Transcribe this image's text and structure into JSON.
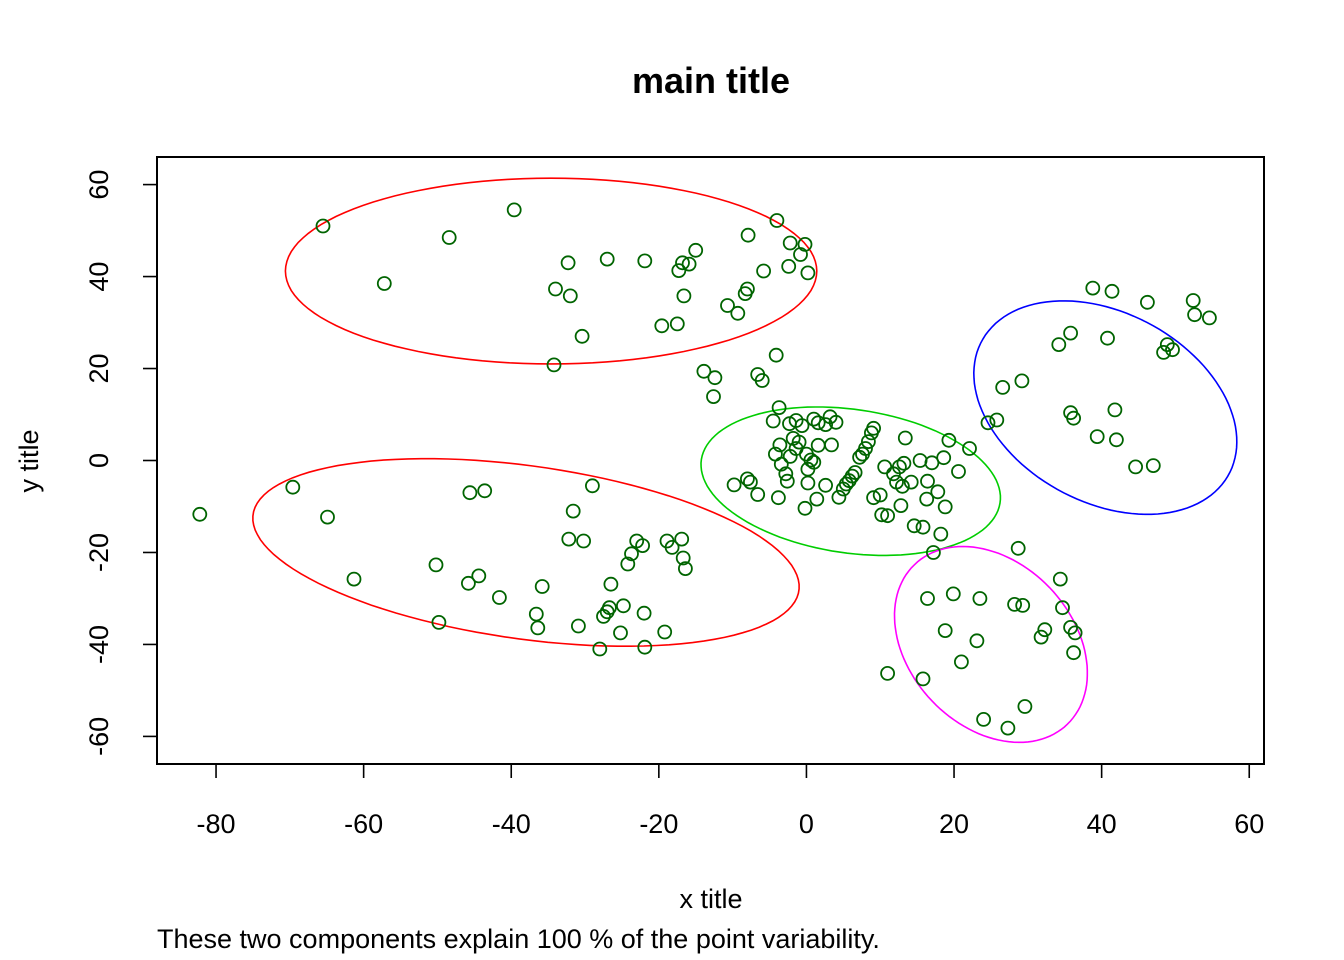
{
  "chart_data": {
    "type": "scatter",
    "title": "main title",
    "xlabel": "x title",
    "ylabel": "y title",
    "subtitle": "These two components explain 100 % of the point variability.",
    "xlim": [
      -88,
      62
    ],
    "ylim": [
      -66,
      66
    ],
    "xticks": [
      -80,
      -60,
      -40,
      -20,
      0,
      20,
      40,
      60
    ],
    "yticks": [
      -60,
      -40,
      -20,
      0,
      20,
      40,
      60
    ],
    "grid": false,
    "legend": "none",
    "point_color": "#006400",
    "point_shape": "open-circle",
    "points": [
      [
        -65.5,
        51
      ],
      [
        -57.2,
        38.5
      ],
      [
        -48.4,
        48.5
      ],
      [
        -39.6,
        54.5
      ],
      [
        -34,
        37.3
      ],
      [
        -32.3,
        43
      ],
      [
        -32,
        35.8
      ],
      [
        -34.2,
        20.8
      ],
      [
        -30.4,
        27
      ],
      [
        -27,
        43.8
      ],
      [
        -21.9,
        43.4
      ],
      [
        -19.6,
        29.3
      ],
      [
        -17.5,
        29.7
      ],
      [
        -17.3,
        41.3
      ],
      [
        -16.8,
        43
      ],
      [
        -16.6,
        35.8
      ],
      [
        -15.9,
        42.7
      ],
      [
        -15,
        45.7
      ],
      [
        -10.7,
        33.7
      ],
      [
        -8.3,
        36.3
      ],
      [
        -8,
        37.3
      ],
      [
        -7.9,
        49
      ],
      [
        -5.8,
        41.2
      ],
      [
        -4,
        52.2
      ],
      [
        -2.2,
        47.3
      ],
      [
        -2.4,
        42.2
      ],
      [
        -0.8,
        44.8
      ],
      [
        -0.2,
        47
      ],
      [
        0.2,
        40.8
      ],
      [
        -9.3,
        32
      ],
      [
        -4.1,
        22.9
      ],
      [
        -13.9,
        19.4
      ],
      [
        -12.4,
        18
      ],
      [
        -12.6,
        13.9
      ],
      [
        -6.6,
        18.7
      ],
      [
        -6,
        17.4
      ],
      [
        -3.7,
        11.5
      ],
      [
        -4.5,
        8.6
      ],
      [
        -2.3,
        8
      ],
      [
        -1.4,
        8.7
      ],
      [
        -0.6,
        7.6
      ],
      [
        1,
        9
      ],
      [
        1.6,
        8.2
      ],
      [
        2.6,
        7.8
      ],
      [
        3.2,
        9.5
      ],
      [
        4,
        8.3
      ],
      [
        -4.2,
        1.4
      ],
      [
        -3.6,
        3.4
      ],
      [
        -3.4,
        -0.8
      ],
      [
        -2.8,
        -2.9
      ],
      [
        -2.6,
        -4.5
      ],
      [
        -2.2,
        0.9
      ],
      [
        -1.8,
        4.8
      ],
      [
        -1.4,
        2.6
      ],
      [
        -1,
        4
      ],
      [
        0,
        1.4
      ],
      [
        0.2,
        -1.9
      ],
      [
        0.6,
        0.1
      ],
      [
        1,
        -0.4
      ],
      [
        1.6,
        3.3
      ],
      [
        -9.8,
        -5.3
      ],
      [
        -8,
        -4
      ],
      [
        -7.6,
        -4.7
      ],
      [
        -6.6,
        -7.4
      ],
      [
        -3.8,
        -8.1
      ],
      [
        0.2,
        -4.9
      ],
      [
        -0.2,
        -10.4
      ],
      [
        1.4,
        -8.4
      ],
      [
        2.6,
        -5.4
      ],
      [
        3.4,
        3.4
      ],
      [
        4.4,
        -8
      ],
      [
        5,
        -6.2
      ],
      [
        5.4,
        -5.1
      ],
      [
        5.8,
        -4.4
      ],
      [
        6.2,
        -3.4
      ],
      [
        6.6,
        -2.6
      ],
      [
        7.2,
        0.7
      ],
      [
        7.6,
        1.4
      ],
      [
        8,
        2.6
      ],
      [
        8.4,
        4.1
      ],
      [
        8.8,
        6
      ],
      [
        9.1,
        7
      ],
      [
        9.1,
        -8.1
      ],
      [
        10,
        -7.5
      ],
      [
        10.2,
        -11.8
      ],
      [
        10.6,
        -1.4
      ],
      [
        11,
        -12
      ],
      [
        11.8,
        -2.9
      ],
      [
        12.2,
        -4.7
      ],
      [
        12.6,
        -1.4
      ],
      [
        12.8,
        -9.8
      ],
      [
        13,
        -5.6
      ],
      [
        13.2,
        -0.6
      ],
      [
        13.4,
        4.9
      ],
      [
        14.2,
        -4.7
      ],
      [
        14.6,
        -14.2
      ],
      [
        15.4,
        0
      ],
      [
        15.8,
        -14.5
      ],
      [
        16.3,
        -8.4
      ],
      [
        16.4,
        -4.5
      ],
      [
        17,
        -0.5
      ],
      [
        17.2,
        -20
      ],
      [
        17.8,
        -6.8
      ],
      [
        18.2,
        -16
      ],
      [
        18.6,
        0.6
      ],
      [
        18.8,
        -10.1
      ],
      [
        19.3,
        4.4
      ],
      [
        20.6,
        -2.4
      ],
      [
        22.1,
        2.6
      ],
      [
        24.6,
        8.2
      ],
      [
        25.8,
        8.8
      ],
      [
        26.6,
        15.9
      ],
      [
        29.2,
        17.3
      ],
      [
        34.2,
        25.2
      ],
      [
        35.8,
        27.7
      ],
      [
        35.8,
        10.4
      ],
      [
        36.2,
        9.2
      ],
      [
        38.8,
        37.5
      ],
      [
        39.4,
        5.2
      ],
      [
        40.8,
        26.6
      ],
      [
        41.4,
        36.8
      ],
      [
        41.8,
        11
      ],
      [
        42,
        4.5
      ],
      [
        44.6,
        -1.4
      ],
      [
        46.2,
        34.4
      ],
      [
        47,
        -1.1
      ],
      [
        48.4,
        23.5
      ],
      [
        48.9,
        25.2
      ],
      [
        49.6,
        24.1
      ],
      [
        52.4,
        34.8
      ],
      [
        52.6,
        31.7
      ],
      [
        54.6,
        31
      ],
      [
        11,
        -46.3
      ],
      [
        15.8,
        -47.5
      ],
      [
        16.4,
        -30
      ],
      [
        18.8,
        -37
      ],
      [
        19.9,
        -29
      ],
      [
        21,
        -43.8
      ],
      [
        23.1,
        -39.2
      ],
      [
        23.5,
        -30
      ],
      [
        24,
        -56.3
      ],
      [
        27.3,
        -58.2
      ],
      [
        28.2,
        -31.3
      ],
      [
        28.7,
        -19.1
      ],
      [
        29.3,
        -31.5
      ],
      [
        29.6,
        -53.5
      ],
      [
        31.8,
        -38.4
      ],
      [
        32.3,
        -36.8
      ],
      [
        34.4,
        -25.8
      ],
      [
        34.7,
        -32
      ],
      [
        35.8,
        -36.3
      ],
      [
        36.2,
        -41.8
      ],
      [
        36.4,
        -37.5
      ],
      [
        -82.2,
        -11.7
      ],
      [
        -69.6,
        -5.8
      ],
      [
        -64.9,
        -12.3
      ],
      [
        -61.3,
        -25.8
      ],
      [
        -50.2,
        -22.7
      ],
      [
        -49.8,
        -35.2
      ],
      [
        -45.8,
        -26.7
      ],
      [
        -45.6,
        -7
      ],
      [
        -44.4,
        -25.1
      ],
      [
        -43.6,
        -6.6
      ],
      [
        -41.6,
        -29.8
      ],
      [
        -36.6,
        -33.4
      ],
      [
        -36.4,
        -36.4
      ],
      [
        -35.8,
        -27.4
      ],
      [
        -32.2,
        -17.1
      ],
      [
        -31.6,
        -11
      ],
      [
        -30.9,
        -36
      ],
      [
        -30.2,
        -17.5
      ],
      [
        -29,
        -5.5
      ],
      [
        -28,
        -41
      ],
      [
        -27.5,
        -33.9
      ],
      [
        -27,
        -32.9
      ],
      [
        -26.7,
        -32
      ],
      [
        -26.5,
        -26.9
      ],
      [
        -25.2,
        -37.5
      ],
      [
        -24.8,
        -31.6
      ],
      [
        -24.2,
        -22.5
      ],
      [
        -23.7,
        -20.3
      ],
      [
        -23,
        -17.5
      ],
      [
        -22.2,
        -18.5
      ],
      [
        -22,
        -33.2
      ],
      [
        -21.9,
        -40.6
      ],
      [
        -19.2,
        -37.3
      ],
      [
        -18.9,
        -17.5
      ],
      [
        -18.2,
        -18.9
      ],
      [
        -16.9,
        -17.1
      ],
      [
        -16.7,
        -21.2
      ],
      [
        -16.4,
        -23.5
      ]
    ],
    "ellipses": [
      {
        "color": "#ff0000",
        "cx": -34.6,
        "cy": 41.2,
        "rx": 36,
        "ry": 20.2,
        "angle_deg": 0
      },
      {
        "color": "#ff0000",
        "cx": -38,
        "cy": -20,
        "rx": 38,
        "ry": 18.5,
        "angle_deg": -15
      },
      {
        "color": "#00cd00",
        "cx": 6,
        "cy": -4.5,
        "rx": 21,
        "ry": 15.2,
        "angle_deg": -22
      },
      {
        "color": "#0000ff",
        "cx": 40.5,
        "cy": 11.5,
        "rx": 16,
        "ry": 24.5,
        "angle_deg": 25
      },
      {
        "color": "#ff00ff",
        "cx": 25,
        "cy": -40,
        "rx": 12.2,
        "ry": 21.8,
        "angle_deg": 15
      }
    ]
  }
}
